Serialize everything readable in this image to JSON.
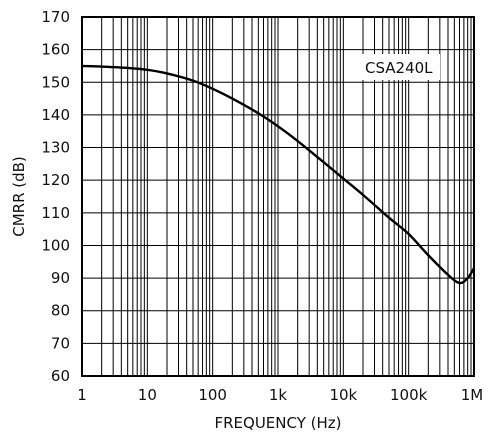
{
  "chart_data": {
    "type": "line",
    "xlabel": "FREQUENCY (Hz)",
    "ylabel": "CMRR (dB)",
    "xscale": "log",
    "xlim": [
      1,
      1000000
    ],
    "ylim": [
      60,
      170
    ],
    "x_ticks": [
      {
        "value": 1,
        "label": "1"
      },
      {
        "value": 10,
        "label": "10"
      },
      {
        "value": 100,
        "label": "100"
      },
      {
        "value": 1000,
        "label": "1k"
      },
      {
        "value": 10000,
        "label": "10k"
      },
      {
        "value": 100000,
        "label": "100k"
      },
      {
        "value": 1000000,
        "label": "1M"
      }
    ],
    "y_ticks": [
      60,
      70,
      80,
      90,
      100,
      110,
      120,
      130,
      140,
      150,
      160,
      170
    ],
    "grid": true,
    "legend_position": "top-right",
    "series": [
      {
        "name": "CSA240L",
        "color": "#000000",
        "points": [
          {
            "x": 1,
            "y": 155
          },
          {
            "x": 2,
            "y": 154.8
          },
          {
            "x": 5,
            "y": 154.4
          },
          {
            "x": 10,
            "y": 153.8
          },
          {
            "x": 20,
            "y": 152.7
          },
          {
            "x": 50,
            "y": 150.5
          },
          {
            "x": 100,
            "y": 148
          },
          {
            "x": 200,
            "y": 145
          },
          {
            "x": 500,
            "y": 140.5
          },
          {
            "x": 1000,
            "y": 136.5
          },
          {
            "x": 2000,
            "y": 132
          },
          {
            "x": 5000,
            "y": 125.5
          },
          {
            "x": 10000,
            "y": 120.5
          },
          {
            "x": 20000,
            "y": 115.5
          },
          {
            "x": 50000,
            "y": 108.5
          },
          {
            "x": 100000,
            "y": 103.5
          },
          {
            "x": 200000,
            "y": 97
          },
          {
            "x": 400000,
            "y": 91
          },
          {
            "x": 600000,
            "y": 88.5
          },
          {
            "x": 800000,
            "y": 90
          },
          {
            "x": 1000000,
            "y": 93
          }
        ]
      }
    ]
  }
}
